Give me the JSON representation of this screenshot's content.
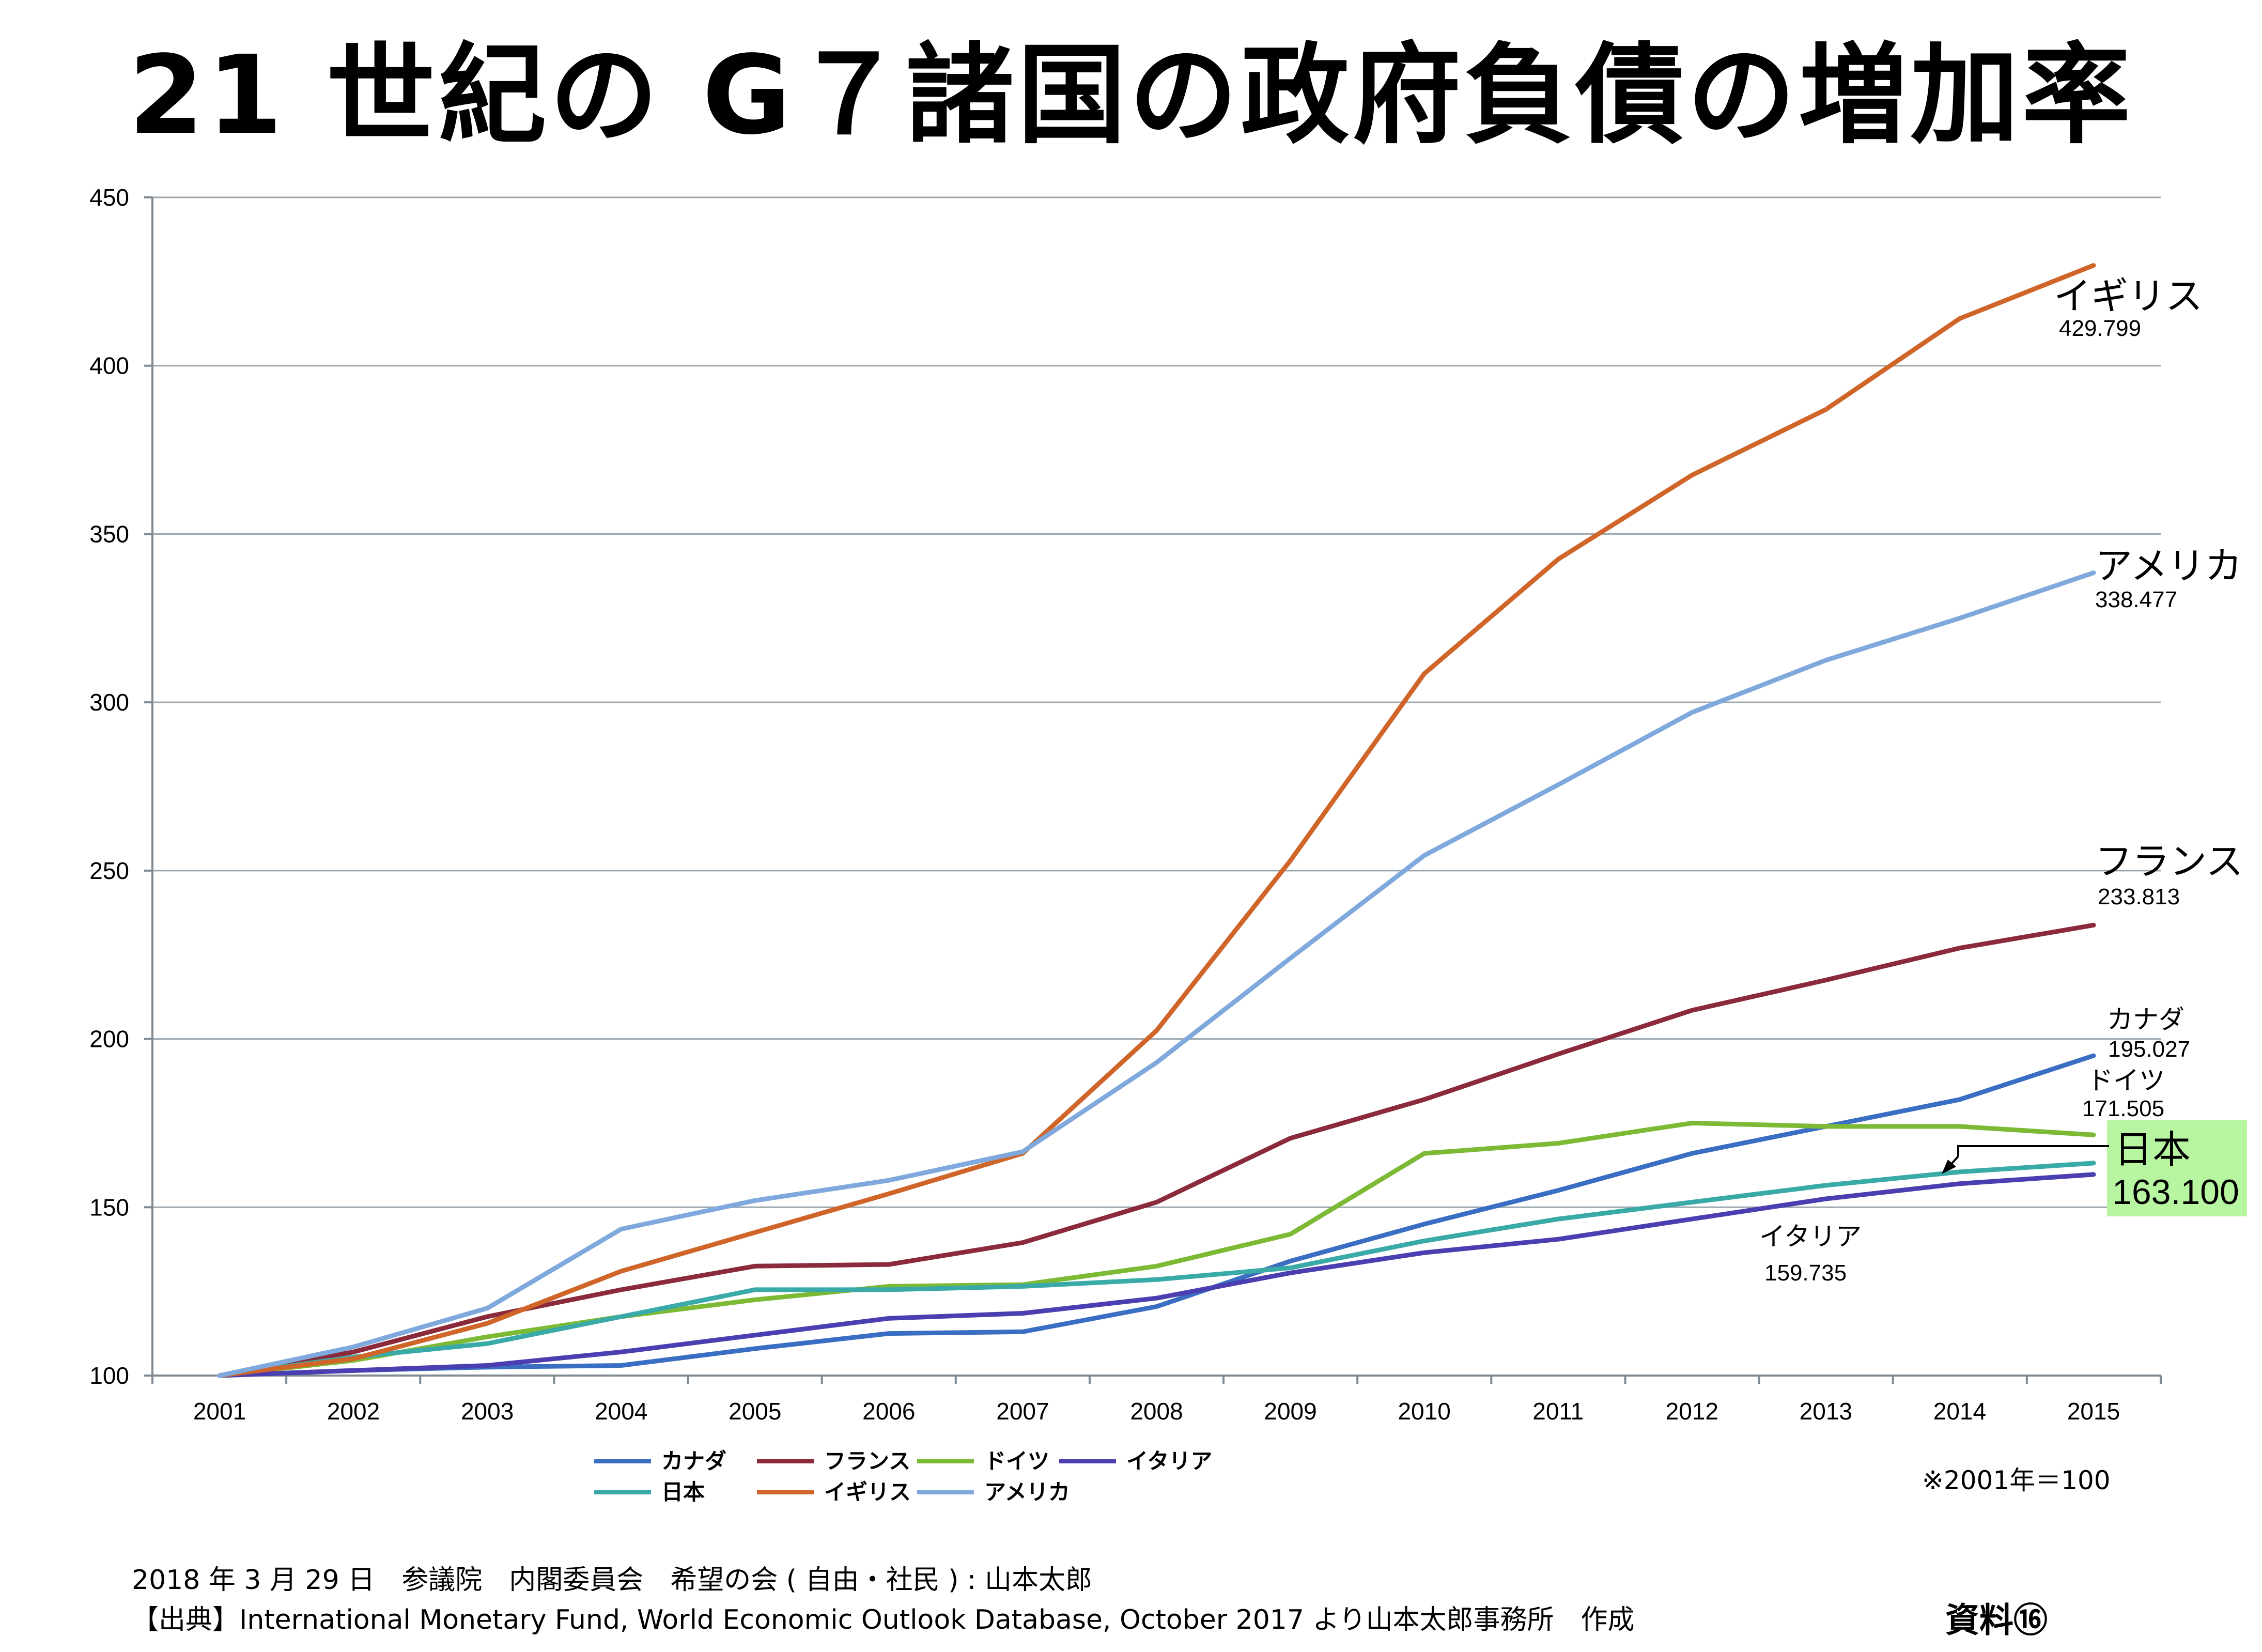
{
  "chart_data": {
    "type": "line",
    "title": "21 世紀の G７諸国の政府負債の増加率",
    "x": [
      "2001",
      "2002",
      "2003",
      "2004",
      "2005",
      "2006",
      "2007",
      "2008",
      "2009",
      "2010",
      "2011",
      "2012",
      "2013",
      "2014",
      "2015"
    ],
    "ylim": [
      100,
      450
    ],
    "yticks": [
      100,
      150,
      200,
      250,
      300,
      350,
      400,
      450
    ],
    "grid": true,
    "legend_position": "bottom",
    "series": [
      {
        "name": "カナダ",
        "color": "#3a6ec2",
        "values": [
          100,
          101.5,
          102.5,
          103,
          108,
          112.5,
          113,
          120.5,
          134,
          145,
          155,
          166,
          174,
          182,
          195.027
        ]
      },
      {
        "name": "フランス",
        "color": "#8b2a3a",
        "values": [
          100,
          107,
          117.5,
          125.5,
          132.5,
          133,
          139.5,
          151.5,
          170.5,
          182,
          195.5,
          208.5,
          217.5,
          227,
          233.813
        ]
      },
      {
        "name": "ドイツ",
        "color": "#7cba35",
        "values": [
          100,
          104.5,
          111.5,
          117.5,
          122.5,
          126.5,
          127,
          132.5,
          142,
          166,
          169,
          175,
          174,
          174,
          171.505
        ]
      },
      {
        "name": "イタリア",
        "color": "#4b3eb0",
        "values": [
          100,
          101.5,
          103,
          107,
          112,
          117,
          118.5,
          123,
          130.5,
          136.5,
          140.5,
          146.5,
          152.5,
          157,
          159.735
        ]
      },
      {
        "name": "日本",
        "color": "#3aaaa8",
        "values": [
          100,
          105.5,
          109.5,
          117.5,
          125.5,
          125.5,
          126.5,
          128.5,
          132,
          140,
          146.5,
          151.5,
          156.5,
          160.5,
          163.1
        ]
      },
      {
        "name": "イギリス",
        "color": "#d0652a",
        "values": [
          100,
          105,
          115.5,
          131,
          142.5,
          154,
          166,
          202.5,
          253,
          308.5,
          342.5,
          367.5,
          387,
          414,
          429.799
        ]
      },
      {
        "name": "アメリカ",
        "color": "#7fa8dc",
        "values": [
          100,
          108.5,
          120,
          143.5,
          152,
          158,
          166.5,
          193,
          224,
          254.5,
          275.5,
          297,
          312.5,
          325,
          338.477
        ]
      }
    ],
    "end_labels": [
      {
        "name": "イギリス",
        "value": "429.799"
      },
      {
        "name": "アメリカ",
        "value": "338.477"
      },
      {
        "name": "フランス",
        "value": "233.813"
      },
      {
        "name": "カナダ",
        "value": "195.027"
      },
      {
        "name": "ドイツ",
        "value": "171.505"
      },
      {
        "name": "日本",
        "value": "163.100",
        "highlight_bg": "#b8f5a0",
        "name_color": "#e8001c"
      },
      {
        "name": "イタリア",
        "value": "159.735"
      }
    ]
  },
  "notes": {
    "base": "※2001年＝100",
    "credit": "2018 年 3 月 29 日　参議院　内閣委員会　希望の会 ( 自由・社民 ) : 山本太郎",
    "source": "【出典】International Monetary Fund, World Economic Outlook Database, October 2017 より山本太郎事務所　作成",
    "doc_label": "資料⑯"
  }
}
